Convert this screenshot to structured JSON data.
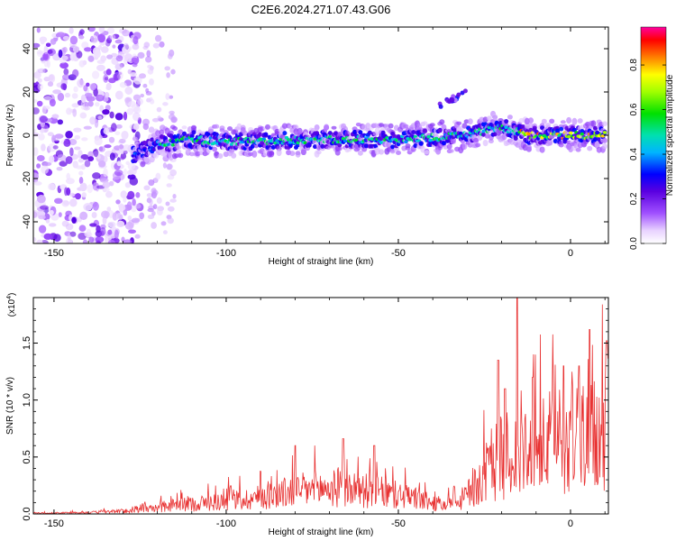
{
  "title": "C2E6.2024.271.07.43.G06",
  "chart_data": [
    {
      "type": "heatmap",
      "xlabel": "Height of straight line (km)",
      "ylabel": "Frequency (Hz)",
      "xlim": [
        -156,
        11
      ],
      "ylim": [
        -50,
        50
      ],
      "xticks": [
        -150,
        -100,
        -50,
        0
      ],
      "yticks": [
        -40,
        -20,
        0,
        20,
        40
      ],
      "colorbar": {
        "label": "Normalized spectral amplitude",
        "range": [
          0,
          0.97
        ],
        "ticks": [
          0.0,
          0.2,
          0.4,
          0.6,
          0.8
        ]
      },
      "band": {
        "start_height": -127,
        "end_height": 10,
        "center_freq": [
          [
            -127,
            -9
          ],
          [
            -120,
            -4
          ],
          [
            -110,
            -2
          ],
          [
            -100,
            -3
          ],
          [
            -75,
            -2
          ],
          [
            -50,
            -2
          ],
          [
            -30,
            0
          ],
          [
            -20,
            4
          ],
          [
            -12,
            0
          ],
          [
            0,
            0
          ],
          [
            10,
            0
          ]
        ],
        "secondary": {
          "from_height": -38,
          "to_height": -30,
          "freq": [
            14,
            20
          ]
        }
      },
      "noise_region": [
        -156,
        -125
      ]
    },
    {
      "type": "line",
      "xlabel": "Height of straight line (km)",
      "ylabel": "SNR (10 * v/v)",
      "multiplier": "(x10",
      "multiplier_exp": "4",
      "xlim": [
        -156,
        11
      ],
      "ylim": [
        0,
        1.9
      ],
      "xticks": [
        -150,
        -100,
        -50,
        0
      ],
      "yticks": [
        0.0,
        0.5,
        1.0,
        1.5
      ],
      "series": [
        {
          "color": "#e83232",
          "envelope": [
            [
              -156,
              0.01
            ],
            [
              -140,
              0.02
            ],
            [
              -125,
              0.05
            ],
            [
              -115,
              0.12
            ],
            [
              -105,
              0.16
            ],
            [
              -95,
              0.2
            ],
            [
              -85,
              0.28
            ],
            [
              -75,
              0.35
            ],
            [
              -65,
              0.36
            ],
            [
              -55,
              0.3
            ],
            [
              -45,
              0.22
            ],
            [
              -38,
              0.12
            ],
            [
              -33,
              0.15
            ],
            [
              -28,
              0.35
            ],
            [
              -24,
              0.6
            ],
            [
              -20,
              0.8
            ],
            [
              -17,
              0.85
            ],
            [
              -14,
              0.75
            ],
            [
              -10,
              0.85
            ],
            [
              -5,
              1.05
            ],
            [
              0,
              1.15
            ],
            [
              5,
              1.2
            ],
            [
              8,
              1.05
            ],
            [
              11,
              1.3
            ]
          ],
          "peaks": [
            [
              -15.5,
              1.9
            ],
            [
              -21,
              1.35
            ],
            [
              -19,
              1.1
            ],
            [
              -11,
              1.2
            ],
            [
              -2,
              1.3
            ],
            [
              2.5,
              1.3
            ],
            [
              5.5,
              1.62
            ],
            [
              10.5,
              1.52
            ],
            [
              -66,
              0.66
            ],
            [
              -80,
              0.6
            ],
            [
              -57,
              0.6
            ]
          ]
        }
      ]
    }
  ]
}
